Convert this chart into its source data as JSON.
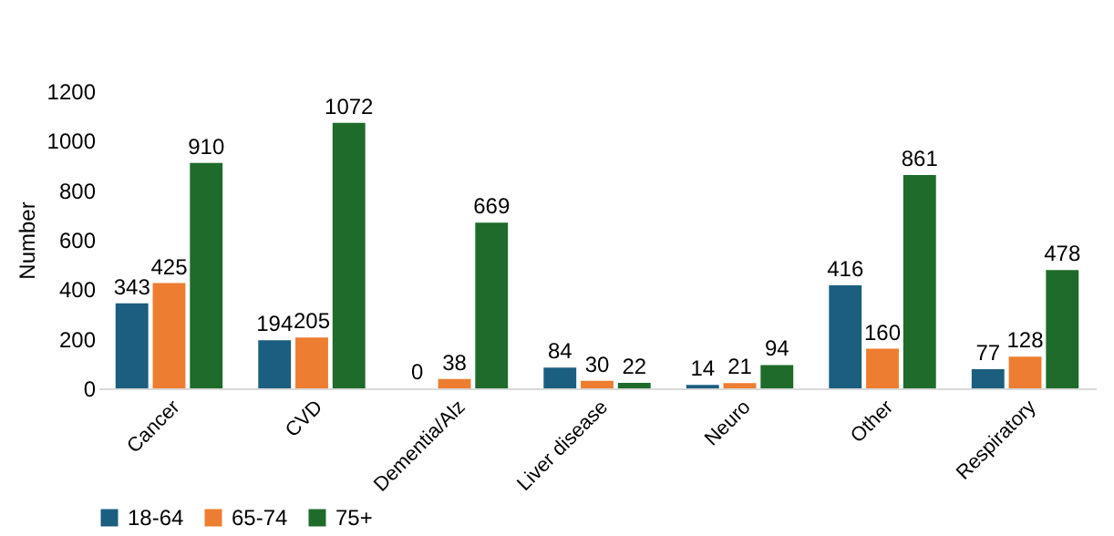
{
  "chart_data": {
    "type": "bar",
    "ylabel": "Number",
    "categories": [
      "Cancer",
      "CVD",
      "Dementia/Alz",
      "Liver disease",
      "Neuro",
      "Other",
      "Respiratory"
    ],
    "series": [
      {
        "name": "18-64",
        "color": "#1b5e80",
        "values": [
          343,
          194,
          0,
          84,
          14,
          416,
          77
        ]
      },
      {
        "name": "65-74",
        "color": "#ed7d31",
        "values": [
          425,
          205,
          38,
          30,
          21,
          160,
          128
        ]
      },
      {
        "name": "75+",
        "color": "#1e6b2b",
        "values": [
          910,
          1072,
          669,
          22,
          94,
          861,
          478
        ]
      }
    ],
    "ylim": [
      0,
      1200
    ],
    "yticks": [
      0,
      200,
      400,
      600,
      800,
      1000,
      1200
    ],
    "grid": false,
    "legend": "bottom",
    "data_labels": true
  }
}
